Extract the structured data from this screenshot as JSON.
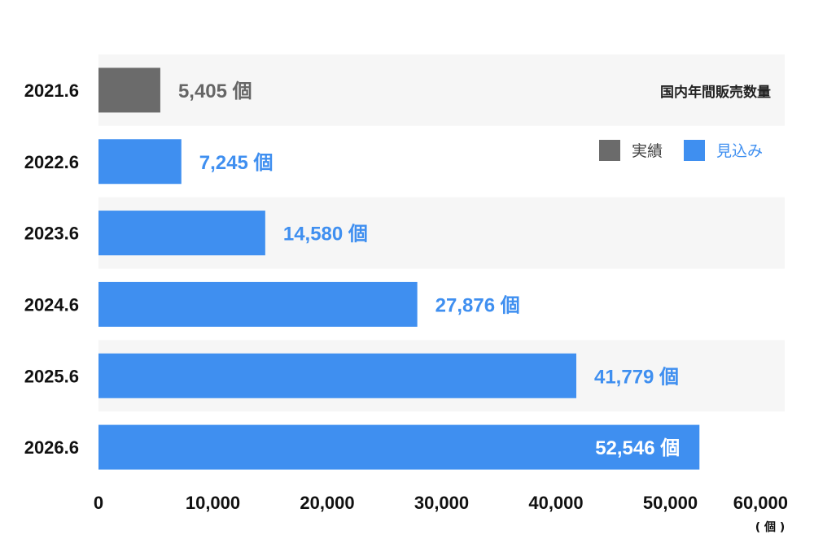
{
  "chart_data": {
    "type": "bar",
    "orientation": "horizontal",
    "title": "国内年間販売数量",
    "categories": [
      "2021.6",
      "2022.6",
      "2023.6",
      "2024.6",
      "2025.6",
      "2026.6"
    ],
    "values": [
      5405,
      7245,
      14580,
      27876,
      41779,
      52546
    ],
    "value_labels": [
      "5,405 個",
      "7,245 個",
      "14,580 個",
      "27,876 個",
      "41,779 個",
      "52,546 個"
    ],
    "bar_kind": [
      "actual",
      "forecast",
      "forecast",
      "forecast",
      "forecast",
      "forecast"
    ],
    "legend": {
      "placement": "top-right",
      "items": [
        {
          "key": "actual",
          "label": "実績",
          "color": "#6b6b6b"
        },
        {
          "key": "forecast",
          "label": "見込み",
          "color": "#3f8ff0"
        }
      ]
    },
    "x_ticks": [
      "0",
      "10,000",
      "20,000",
      "30,000",
      "40,000",
      "50,000",
      "60,000"
    ],
    "xlim": [
      0,
      60000
    ],
    "unit_label": "( 個 )",
    "grid": false,
    "row_band_colors": [
      "#f6f6f6",
      "#ffffff"
    ]
  }
}
